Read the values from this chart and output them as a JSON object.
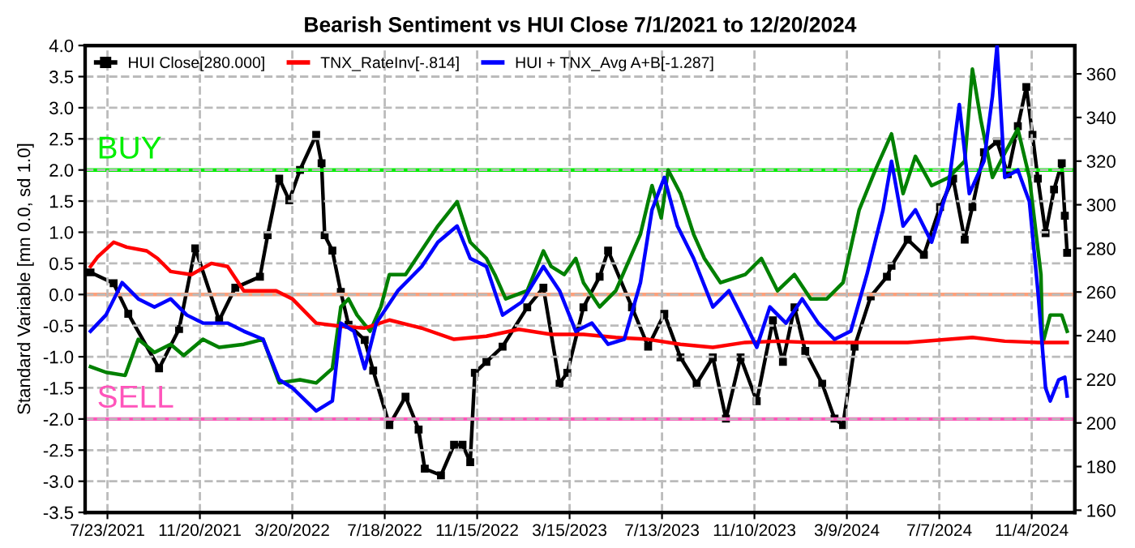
{
  "chart_data": {
    "type": "line",
    "title": "Bearish Sentiment vs HUI Close 7/1/2021 to 12/20/2024",
    "ylabel": "Standard Variable [mn 0.0, sd 1.0]",
    "xlim": [
      "2021-06-24",
      "2024-12-30"
    ],
    "xticks": [
      {
        "value": "2021-07-23",
        "label": "7/23/2021"
      },
      {
        "value": "2021-11-20",
        "label": "11/20/2021"
      },
      {
        "value": "2022-03-20",
        "label": "3/20/2022"
      },
      {
        "value": "2022-07-18",
        "label": "7/18/2022"
      },
      {
        "value": "2022-11-15",
        "label": "11/15/2022"
      },
      {
        "value": "2023-03-15",
        "label": "3/15/2023"
      },
      {
        "value": "2023-07-13",
        "label": "7/13/2023"
      },
      {
        "value": "2023-11-10",
        "label": "11/10/2023"
      },
      {
        "value": "2024-03-09",
        "label": "3/9/2024"
      },
      {
        "value": "2024-07-07",
        "label": "7/7/2024"
      },
      {
        "value": "2024-11-04",
        "label": "11/4/2024"
      }
    ],
    "ylim": [
      -3.5,
      4.0
    ],
    "yticks": [
      {
        "value": 4,
        "label": "4.0"
      },
      {
        "value": 3.5,
        "label": "3.5"
      },
      {
        "value": 3,
        "label": "3.0"
      },
      {
        "value": 2.5,
        "label": "2.5"
      },
      {
        "value": 2,
        "label": "2.0"
      },
      {
        "value": 1.5,
        "label": "1.5"
      },
      {
        "value": 1,
        "label": "1.0"
      },
      {
        "value": 0.5,
        "label": "0.5"
      },
      {
        "value": 0,
        "label": "0.0"
      },
      {
        "value": -0.5,
        "label": "-0.5"
      },
      {
        "value": -1,
        "label": "-1.0"
      },
      {
        "value": -1.5,
        "label": "-1.5"
      },
      {
        "value": -2,
        "label": "-2.0"
      },
      {
        "value": -2.5,
        "label": "-2.5"
      },
      {
        "value": -3,
        "label": "-3.0"
      },
      {
        "value": -3.5,
        "label": "-3.5"
      }
    ],
    "y2lim": [
      159,
      373
    ],
    "y2ticks": [
      160,
      180,
      200,
      220,
      240,
      260,
      280,
      300,
      320,
      340,
      360
    ],
    "grid": true,
    "legend": "top left",
    "ref_lines": [
      {
        "axis": "y",
        "value": 2,
        "label": "BUY",
        "color": "#00ee00"
      },
      {
        "axis": "y",
        "value": -2,
        "label": "SELL",
        "color": "#ff55bb"
      },
      {
        "axis": "y",
        "value": 0,
        "color": "#ffa07a"
      }
    ],
    "series": [
      {
        "name": "HUI Close[280.000]",
        "color": "#000000",
        "axis": "y2",
        "marker": "square",
        "x": [
          "2021-07-01",
          "2021-07-31",
          "2021-08-19",
          "2021-09-28",
          "2021-10-24",
          "2021-11-14",
          "2021-12-15",
          "2022-01-05",
          "2022-02-06",
          "2022-02-16",
          "2022-03-03",
          "2022-03-16",
          "2022-03-30",
          "2022-04-20",
          "2022-04-27",
          "2022-05-01",
          "2022-05-11",
          "2022-05-22",
          "2022-06-01",
          "2022-06-22",
          "2022-07-03",
          "2022-07-24",
          "2022-08-14",
          "2022-08-31",
          "2022-09-08",
          "2022-09-29",
          "2022-10-16",
          "2022-10-27",
          "2022-11-06",
          "2022-11-12",
          "2022-11-27",
          "2022-12-18",
          "2023-01-19",
          "2023-02-09",
          "2023-03-02",
          "2023-03-12",
          "2023-04-02",
          "2023-04-23",
          "2023-05-04",
          "2023-06-04",
          "2023-06-25",
          "2023-07-16",
          "2023-08-06",
          "2023-08-27",
          "2023-09-17",
          "2023-10-04",
          "2023-10-23",
          "2023-11-13",
          "2023-12-04",
          "2023-12-17",
          "2024-01-01",
          "2024-01-15",
          "2024-02-06",
          "2024-02-22",
          "2024-03-04",
          "2024-03-19",
          "2024-04-09",
          "2024-04-30",
          "2024-05-06",
          "2024-05-27",
          "2024-06-17",
          "2024-07-08",
          "2024-07-25",
          "2024-08-09",
          "2024-08-19",
          "2024-09-03",
          "2024-09-20",
          "2024-10-04",
          "2024-10-17",
          "2024-10-28",
          "2024-11-05",
          "2024-11-12",
          "2024-11-22",
          "2024-12-03",
          "2024-12-13",
          "2024-12-17",
          "2024-12-20"
        ],
        "values": [
          269,
          264,
          250,
          225,
          243,
          280,
          247,
          262,
          267,
          286,
          312,
          302,
          316,
          332,
          319,
          286,
          279,
          260,
          245,
          238,
          224,
          199,
          212,
          197,
          179,
          176,
          190,
          190,
          182,
          223,
          228,
          235,
          253,
          262,
          218,
          223,
          253,
          267,
          279,
          253,
          235,
          250,
          230,
          218,
          230,
          202,
          230,
          210,
          247,
          228,
          253,
          233,
          218,
          202,
          199,
          235,
          258,
          267,
          272,
          284,
          277,
          299,
          312,
          284,
          299,
          324,
          329,
          314,
          336,
          354,
          332,
          312,
          287,
          307,
          319,
          295,
          278
        ]
      },
      {
        "color": "#008000",
        "x": [
          "2021-07-01",
          "2021-07-21",
          "2021-08-15",
          "2021-09-01",
          "2021-09-22",
          "2021-10-13",
          "2021-10-30",
          "2021-11-24",
          "2021-12-15",
          "2022-01-16",
          "2022-02-10",
          "2022-03-03",
          "2022-03-30",
          "2022-04-20",
          "2022-05-11",
          "2022-05-22",
          "2022-06-01",
          "2022-06-12",
          "2022-06-29",
          "2022-07-13",
          "2022-07-24",
          "2022-08-14",
          "2022-09-25",
          "2022-10-20",
          "2022-11-06",
          "2022-11-27",
          "2022-12-08",
          "2022-12-22",
          "2023-01-19",
          "2023-02-09",
          "2023-02-19",
          "2023-03-08",
          "2023-03-23",
          "2023-04-02",
          "2023-04-23",
          "2023-05-14",
          "2023-06-15",
          "2023-06-30",
          "2023-07-12",
          "2023-07-21",
          "2023-08-06",
          "2023-08-23",
          "2023-09-06",
          "2023-09-27",
          "2023-10-29",
          "2023-11-19",
          "2023-12-10",
          "2024-01-01",
          "2024-01-22",
          "2024-02-12",
          "2024-03-04",
          "2024-03-25",
          "2024-04-15",
          "2024-05-06",
          "2024-05-21",
          "2024-06-06",
          "2024-06-27",
          "2024-07-19",
          "2024-08-09",
          "2024-08-19",
          "2024-08-30",
          "2024-09-14",
          "2024-09-30",
          "2024-10-17",
          "2024-11-01",
          "2024-11-16",
          "2024-11-18",
          "2024-11-28",
          "2024-12-13",
          "2024-12-20"
        ],
        "values": [
          -1.16,
          -1.25,
          -1.3,
          -0.72,
          -0.93,
          -0.8,
          -0.98,
          -0.72,
          -0.85,
          -0.8,
          -0.72,
          -1.42,
          -1.37,
          -1.42,
          -1.19,
          -0.2,
          -0.07,
          -0.33,
          -0.59,
          -0.2,
          0.32,
          0.32,
          1.1,
          1.49,
          0.84,
          0.58,
          0.32,
          -0.07,
          0.06,
          0.7,
          0.45,
          0.32,
          0.58,
          0.19,
          -0.2,
          0.06,
          0.97,
          1.75,
          1.23,
          2.0,
          1.62,
          0.97,
          0.58,
          0.19,
          0.32,
          0.58,
          0.06,
          0.32,
          -0.07,
          -0.07,
          0.19,
          1.36,
          2.0,
          2.58,
          1.62,
          2.22,
          1.75,
          1.88,
          2.14,
          3.62,
          2.8,
          1.88,
          2.27,
          2.66,
          1.88,
          0.32,
          -0.8,
          -0.33,
          -0.33,
          -0.59
        ]
      },
      {
        "name": "TNX_RateInv[-.814]",
        "color": "#ff0000",
        "x": [
          "2021-07-01",
          "2021-07-10",
          "2021-07-31",
          "2021-08-17",
          "2021-09-12",
          "2021-09-26",
          "2021-10-13",
          "2021-11-09",
          "2021-12-05",
          "2021-12-26",
          "2022-01-16",
          "2022-02-27",
          "2022-03-20",
          "2022-04-20",
          "2022-05-22",
          "2022-06-22",
          "2022-07-24",
          "2022-09-04",
          "2022-10-16",
          "2022-11-27",
          "2023-01-08",
          "2023-02-19",
          "2023-04-02",
          "2023-05-14",
          "2023-06-25",
          "2023-08-06",
          "2023-09-17",
          "2023-10-29",
          "2023-12-10",
          "2024-01-22",
          "2024-03-04",
          "2024-05-27",
          "2024-08-19",
          "2024-09-30",
          "2024-11-12",
          "2024-12-20"
        ],
        "values": [
          0.45,
          0.6,
          0.84,
          0.76,
          0.7,
          0.58,
          0.37,
          0.32,
          0.5,
          0.45,
          0.06,
          0.06,
          -0.07,
          -0.46,
          -0.51,
          -0.54,
          -0.41,
          -0.54,
          -0.72,
          -0.67,
          -0.56,
          -0.64,
          -0.64,
          -0.69,
          -0.72,
          -0.8,
          -0.85,
          -0.77,
          -0.75,
          -0.77,
          -0.77,
          -0.77,
          -0.69,
          -0.75,
          -0.77,
          -0.77
        ]
      },
      {
        "name": "HUI + TNX_Avg A+B[-1.287]",
        "color": "#0000ff",
        "x": [
          "2021-07-01",
          "2021-07-21",
          "2021-08-11",
          "2021-09-01",
          "2021-09-22",
          "2021-10-13",
          "2021-11-03",
          "2021-11-24",
          "2021-12-26",
          "2022-01-16",
          "2022-02-10",
          "2022-03-03",
          "2022-03-20",
          "2022-04-20",
          "2022-05-11",
          "2022-05-22",
          "2022-06-08",
          "2022-06-22",
          "2022-07-07",
          "2022-08-04",
          "2022-09-04",
          "2022-09-25",
          "2022-10-20",
          "2022-11-06",
          "2022-11-27",
          "2022-12-18",
          "2023-01-12",
          "2023-02-09",
          "2023-03-02",
          "2023-03-23",
          "2023-04-13",
          "2023-05-04",
          "2023-05-25",
          "2023-06-15",
          "2023-06-30",
          "2023-07-16",
          "2023-08-02",
          "2023-08-23",
          "2023-09-17",
          "2023-10-08",
          "2023-10-29",
          "2023-11-13",
          "2023-11-30",
          "2023-12-21",
          "2024-01-11",
          "2024-02-01",
          "2024-02-22",
          "2024-03-14",
          "2024-04-04",
          "2024-04-25",
          "2024-05-06",
          "2024-05-21",
          "2024-06-06",
          "2024-06-27",
          "2024-07-19",
          "2024-08-02",
          "2024-08-15",
          "2024-09-03",
          "2024-09-14",
          "2024-09-20",
          "2024-09-30",
          "2024-10-17",
          "2024-11-01",
          "2024-11-12",
          "2024-11-22",
          "2024-11-28",
          "2024-12-09",
          "2024-12-17",
          "2024-12-20"
        ],
        "values": [
          -0.59,
          -0.33,
          0.19,
          -0.07,
          -0.2,
          -0.07,
          -0.33,
          -0.46,
          -0.46,
          -0.59,
          -0.72,
          -1.37,
          -1.5,
          -1.87,
          -1.71,
          -0.46,
          -0.59,
          -1.19,
          -0.46,
          0.06,
          0.45,
          0.84,
          1.1,
          0.58,
          0.45,
          -0.33,
          -0.12,
          0.45,
          0.06,
          -0.59,
          -0.46,
          -0.8,
          -0.72,
          0.19,
          1.36,
          1.88,
          1.1,
          0.58,
          -0.2,
          0.06,
          -0.46,
          -0.85,
          -0.2,
          -0.46,
          -0.07,
          -0.46,
          -0.72,
          -0.59,
          0.32,
          1.36,
          2.14,
          1.1,
          1.36,
          0.84,
          1.75,
          3.05,
          1.62,
          2.14,
          3.18,
          4.0,
          1.88,
          2.0,
          1.49,
          0.06,
          -1.5,
          -1.71,
          -1.37,
          -1.33,
          -1.63
        ]
      }
    ]
  }
}
